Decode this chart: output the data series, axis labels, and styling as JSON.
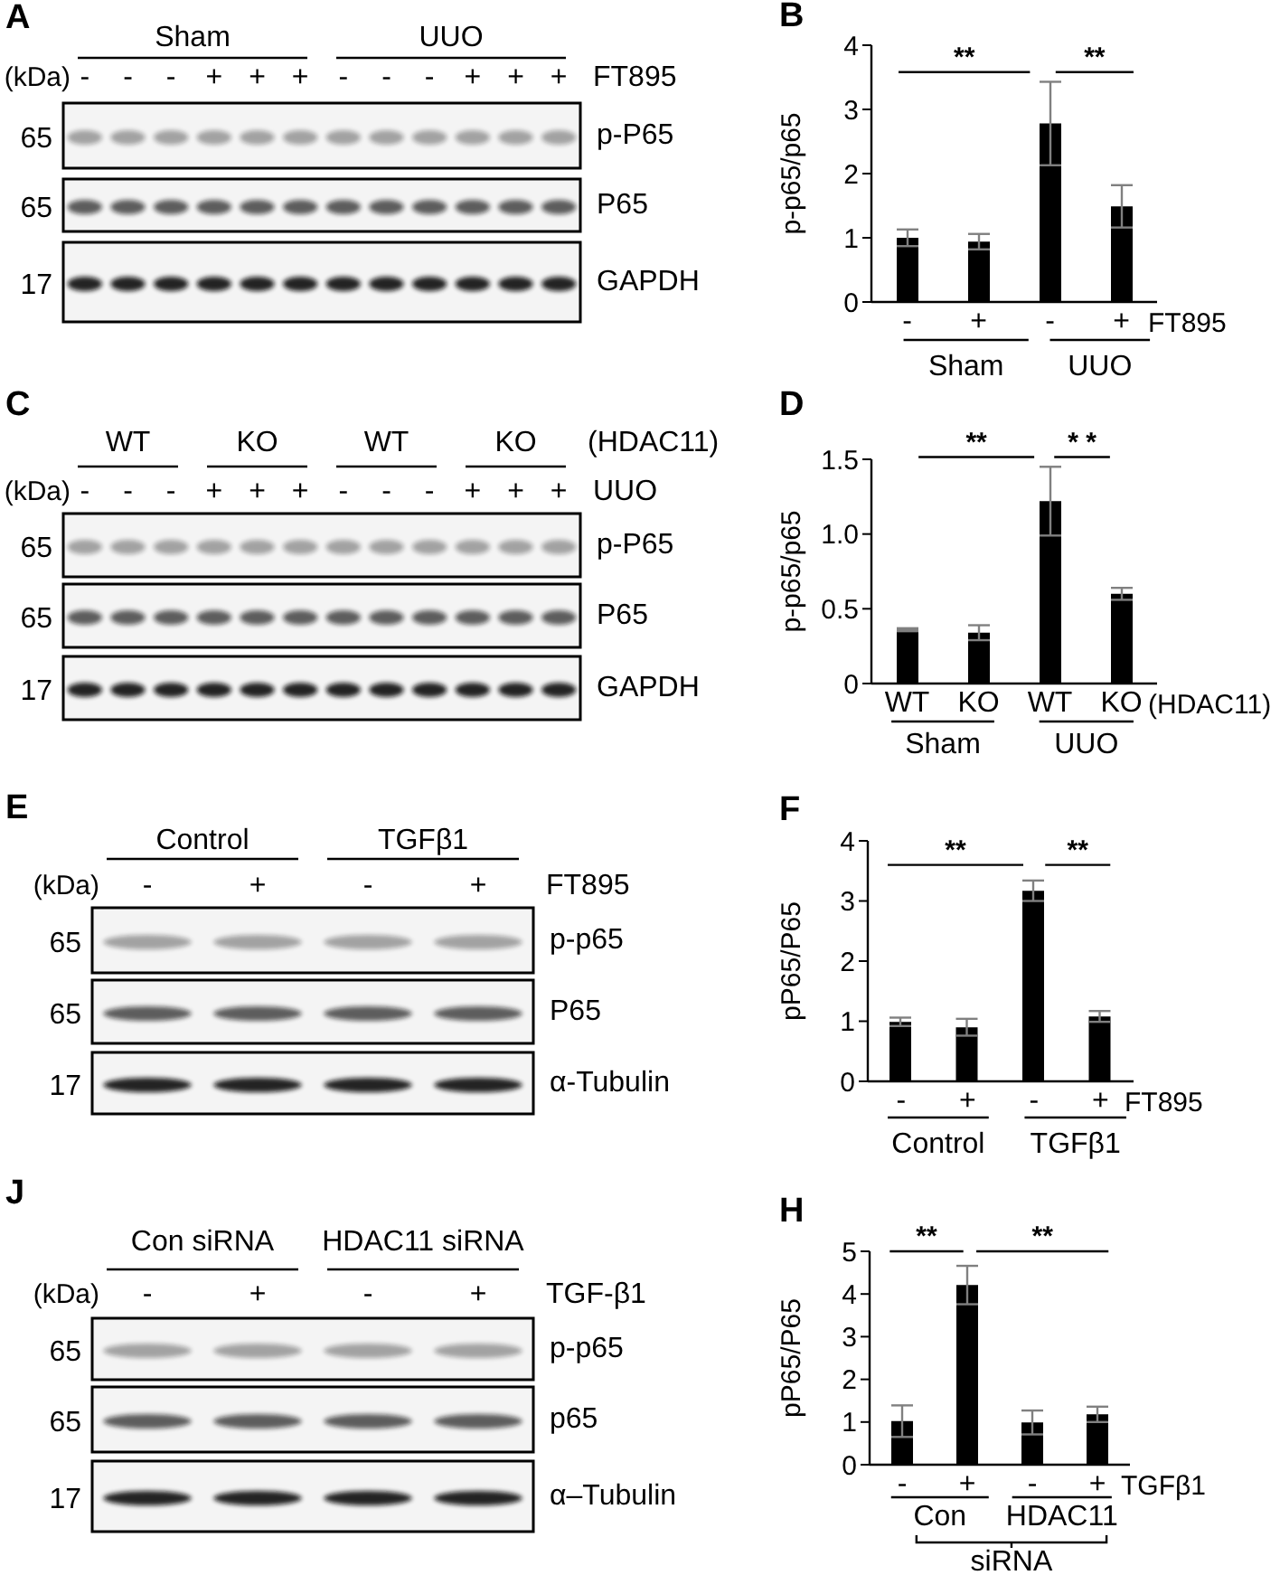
{
  "chart_data": [
    {
      "type": "other",
      "title": "A",
      "categories": [
        "-",
        "-",
        "-",
        "+",
        "+",
        "+",
        "-",
        "-",
        "-",
        "+",
        "+",
        "+"
      ],
      "xlabel": "FT895",
      "ylabel": "(kDa)",
      "y_categories": [
        "65",
        "65",
        "17"
      ],
      "y2_categories": [
        "p-P65",
        "P65",
        "GAPDH"
      ],
      "annotations": [
        "Sham",
        "UUO"
      ]
    },
    {
      "type": "bar",
      "title": "B",
      "ylabel": "p-p65/p65",
      "xlabel": "FT895",
      "categories": [
        "-",
        "+",
        "-",
        "+"
      ],
      "values": [
        1.0,
        0.94,
        2.78,
        1.49
      ],
      "errors": [
        0.13,
        0.12,
        0.65,
        0.33
      ],
      "color": "#000000",
      "ylim": [
        0,
        4
      ],
      "yticks": [
        0,
        1,
        2,
        3,
        4
      ],
      "annotations": [
        "**",
        "**",
        "Sham",
        "UUO"
      ]
    },
    {
      "type": "other",
      "title": "C",
      "categories": [
        "-",
        "-",
        "-",
        "+",
        "+",
        "+",
        "-",
        "-",
        "-",
        "+",
        "+",
        "+"
      ],
      "xlabel": "UUO",
      "x2label": "(HDAC11)",
      "ylabel": "(kDa)",
      "y_categories": [
        "65",
        "65",
        "17"
      ],
      "y2_categories": [
        "p-P65",
        "P65",
        "GAPDH"
      ],
      "annotations": [
        "WT",
        "KO",
        "WT",
        "KO"
      ]
    },
    {
      "type": "bar",
      "title": "D",
      "ylabel": "p-p65/p65",
      "xlabel": "(HDAC11)",
      "categories": [
        "WT",
        "KO",
        "WT",
        "KO"
      ],
      "values": [
        0.36,
        0.34,
        1.22,
        0.6
      ],
      "errors": [
        0.01,
        0.05,
        0.23,
        0.04
      ],
      "color": "#000000",
      "ylim": [
        0,
        1.5
      ],
      "yticks": [
        0,
        0.5,
        {
          "value": 1,
          "label": "1.0"
        },
        1.5
      ],
      "annotations": [
        "**",
        "* *",
        "Sham",
        "UUO"
      ]
    },
    {
      "type": "other",
      "title": "E",
      "categories": [
        "-",
        "+",
        "-",
        "+"
      ],
      "xlabel": "FT895",
      "ylabel": "(kDa)",
      "y_categories": [
        "65",
        "65",
        "17"
      ],
      "y2_categories": [
        "p-p65",
        "P65",
        "α-Tubulin"
      ],
      "annotations": [
        "Control",
        "TGFβ1"
      ]
    },
    {
      "type": "bar",
      "title": "F",
      "ylabel": "pP65/P65",
      "xlabel": "FT895",
      "categories": [
        "-",
        "+",
        "-",
        "+"
      ],
      "values": [
        0.99,
        0.9,
        3.17,
        1.08
      ],
      "errors": [
        0.07,
        0.14,
        0.17,
        0.09
      ],
      "color": "#000000",
      "ylim": [
        0,
        4
      ],
      "yticks": [
        0,
        1,
        2,
        3,
        4
      ],
      "annotations": [
        "**",
        "**",
        "Control",
        "TGFβ1"
      ]
    },
    {
      "type": "other",
      "title": "J",
      "categories": [
        "-",
        "+",
        "-",
        "+"
      ],
      "xlabel": "TGF-β1",
      "ylabel": "(kDa)",
      "y_categories": [
        "65",
        "65",
        "17"
      ],
      "y2_categories": [
        "p-p65",
        "p65",
        "α–Tubulin"
      ],
      "annotations": [
        "Con siRNA",
        "HDAC11 siRNA"
      ]
    },
    {
      "type": "bar",
      "title": "H",
      "ylabel": "pP65/P65",
      "xlabel": "TGFβ1",
      "categories": [
        "-",
        "+",
        "-",
        "+"
      ],
      "values": [
        1.02,
        4.21,
        0.99,
        1.18
      ],
      "errors": [
        0.37,
        0.45,
        0.28,
        0.18
      ],
      "color": "#000000",
      "ylim": [
        0,
        5
      ],
      "yticks": [
        0,
        1,
        2,
        3,
        4,
        5
      ],
      "annotations": [
        "**",
        "**",
        "Con",
        "HDAC11",
        "siRNA"
      ]
    }
  ]
}
